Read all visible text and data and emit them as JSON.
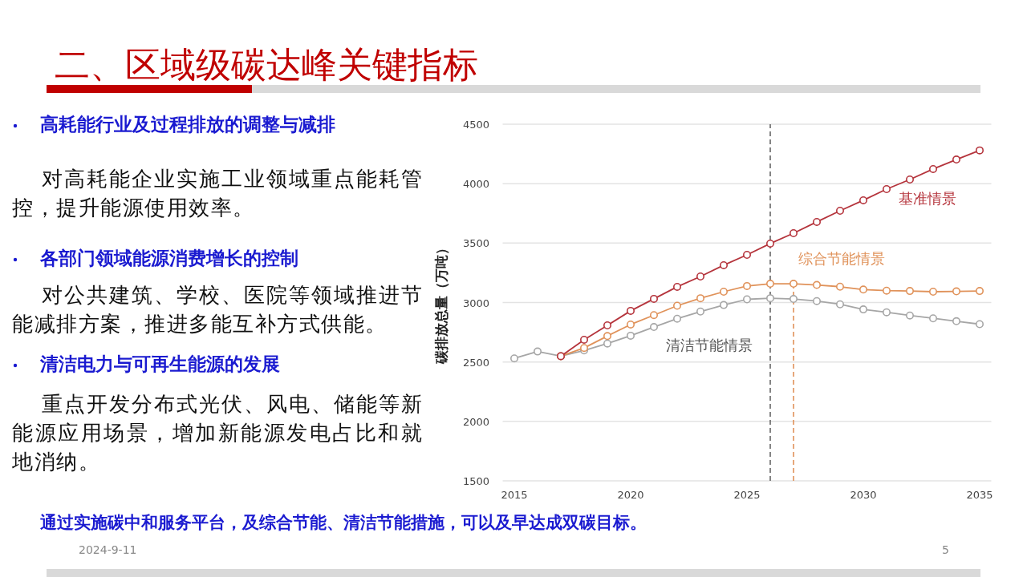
{
  "chart_data": {
    "type": "line",
    "title": "二、区域级碳达峰关键指标",
    "ylabel": "碳排放总量（万吨）",
    "x": [
      2015,
      2016,
      2017,
      2018,
      2019,
      2020,
      2021,
      2022,
      2023,
      2024,
      2025,
      2026,
      2027,
      2028,
      2029,
      2030,
      2031,
      2032,
      2033,
      2034,
      2035
    ],
    "series": [
      {
        "name": "基准情景",
        "color": "#b5343c",
        "values": [
          null,
          null,
          2549,
          2687,
          2808,
          2930,
          3031,
          3132,
          3219,
          3314,
          3401,
          3496,
          3583,
          3678,
          3772,
          3860,
          3954,
          4035,
          4123,
          4203,
          4280
        ]
      },
      {
        "name": "综合节能情景",
        "color": "#e0925a",
        "values": [
          null,
          null,
          2549,
          2618,
          2718,
          2815,
          2894,
          2973,
          3036,
          3091,
          3139,
          3158,
          3158,
          3148,
          3133,
          3109,
          3100,
          3097,
          3091,
          3094,
          3097
        ]
      },
      {
        "name": "清洁节能情景",
        "color": "#a6a6a6",
        "values": [
          2530,
          2588,
          2549,
          2597,
          2655,
          2721,
          2794,
          2864,
          2924,
          2979,
          3027,
          3036,
          3030,
          3012,
          2985,
          2942,
          2918,
          2891,
          2867,
          2843,
          2818
        ]
      }
    ],
    "xlim": [
      2014.5,
      2035.5
    ],
    "ylim": [
      1500,
      4500
    ],
    "xticks": [
      2015,
      2020,
      2025,
      2030,
      2035
    ],
    "yticks": [
      1500,
      2000,
      2500,
      3000,
      3500,
      4000,
      4500
    ],
    "ref_lines": [
      {
        "axis": "x",
        "value": 2026,
        "color": "#666666",
        "line_style": "dashed"
      },
      {
        "axis": "x",
        "value": 2027,
        "color": "#e0925a",
        "line_style": "dashed"
      }
    ],
    "grid": "y",
    "legend": false,
    "marker": "circle",
    "line_style": "solid",
    "annotations": [
      "高耗能行业及过程排放的调整与减排",
      "对高耗能企业实施工业领域重点能耗管控，提升能源使用效率。",
      "各部门领域能源消费增长的控制",
      "对公共建筑、学校、医院等领域推进节能减排方案，推进多能互补方式供能。",
      "清洁电力与可再生能源的发展",
      "重点开发分布式光伏、风电、储能等新能源应用场景，增加新能源发电占比和就地消纳。",
      "通过实施碳中和服务平台，及综合节能、清洁节能措施，可以及早达成双碳目标。",
      "2024-9-11",
      "5"
    ]
  }
}
